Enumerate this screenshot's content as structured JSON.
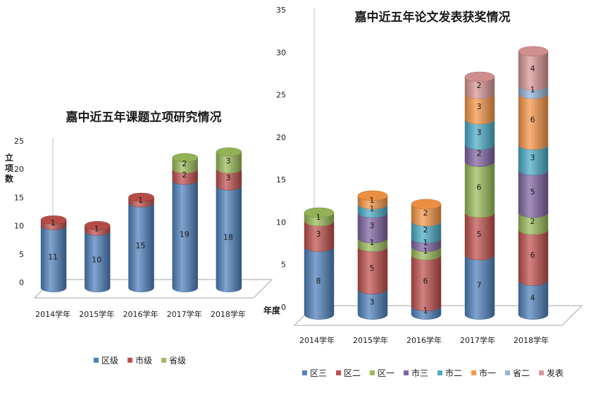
{
  "chart_data": [
    {
      "type": "bar",
      "title": "嘉中近五年课题立项研究情况",
      "ylabel": "立项数",
      "xlabel": "年度",
      "categories": [
        "2014学年",
        "2015学年",
        "2016学年",
        "2017学年",
        "2018学年"
      ],
      "series": [
        {
          "name": "区级",
          "color": "#4f81bd",
          "values": [
            11,
            10,
            15,
            19,
            18
          ]
        },
        {
          "name": "市级",
          "color": "#c0504d",
          "values": [
            1,
            1,
            1,
            2,
            3
          ]
        },
        {
          "name": "省级",
          "color": "#9bbb59",
          "values": [
            0,
            0,
            0,
            2,
            3
          ]
        }
      ],
      "ylim": [
        0,
        25
      ],
      "yticks": [
        0,
        5,
        10,
        15,
        20,
        25
      ],
      "stacked": true,
      "grid": false,
      "legend": "bottom"
    },
    {
      "type": "bar",
      "title": "嘉中近五年论文发表获奖情况",
      "categories": [
        "2014学年",
        "2015学年",
        "2016学年",
        "2017学年",
        "2018学年"
      ],
      "series": [
        {
          "name": "区三",
          "color": "#4f81bd",
          "values": [
            8,
            3,
            1,
            7,
            4
          ]
        },
        {
          "name": "区二",
          "color": "#c0504d",
          "values": [
            3,
            5,
            6,
            5,
            6
          ]
        },
        {
          "name": "区一",
          "color": "#9bbb59",
          "values": [
            1,
            1,
            1,
            6,
            2
          ]
        },
        {
          "name": "市三",
          "color": "#8064a2",
          "values": [
            0,
            3,
            1,
            2,
            5
          ]
        },
        {
          "name": "市二",
          "color": "#4bacc6",
          "values": [
            0,
            1,
            2,
            3,
            3
          ]
        },
        {
          "name": "市一",
          "color": "#f79646",
          "values": [
            0,
            1,
            2,
            3,
            6
          ]
        },
        {
          "name": "省二",
          "color": "#95b3d7",
          "values": [
            0,
            0,
            0,
            0,
            1
          ]
        },
        {
          "name": "发表",
          "color": "#d99694",
          "values": [
            0,
            0,
            0,
            2,
            4
          ]
        }
      ],
      "ylim": [
        0,
        35
      ],
      "yticks": [
        0,
        5,
        10,
        15,
        20,
        25,
        30,
        35
      ],
      "stacked": true,
      "grid": false,
      "legend": "bottom"
    }
  ]
}
